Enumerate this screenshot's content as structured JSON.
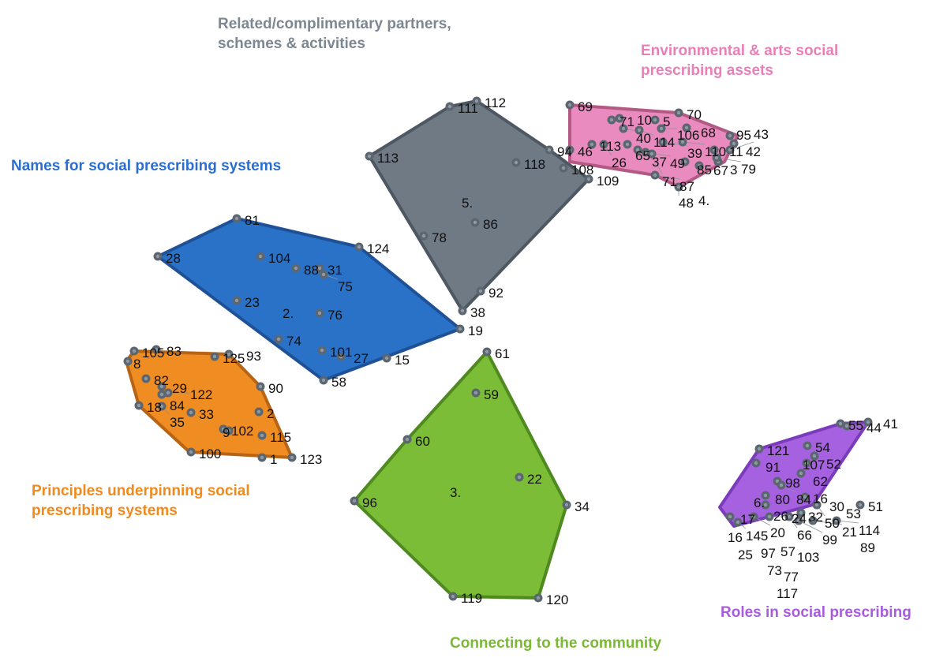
{
  "clusters": [
    {
      "id": "names",
      "title": "Names for social prescribing systems",
      "title_color": "#2a6fcf",
      "fill": "#2a72c8",
      "stroke": "#1f5196",
      "cluster_label": "2.",
      "points": [
        "81",
        "28",
        "104",
        "88",
        "31",
        "75",
        "124",
        "23",
        "76",
        "74",
        "101",
        "27",
        "15",
        "58",
        "19"
      ]
    },
    {
      "id": "related",
      "title": "Related/complimentary partners, schemes & activities",
      "title_color": "#7d8791",
      "fill": "#6f7a85",
      "stroke": "#4e5862",
      "cluster_label": "5.",
      "points": [
        "111",
        "112",
        "113",
        "118",
        "94",
        "108",
        "109",
        "86",
        "78",
        "92",
        "38"
      ]
    },
    {
      "id": "environmental",
      "title": "Environmental & arts social prescribing assets",
      "title_color": "#ea7fb8",
      "fill": "#e98bbf",
      "stroke": "#b35a84",
      "cluster_label": "4.",
      "points": [
        "69",
        "70",
        "71",
        "10",
        "5",
        "40",
        "114",
        "106",
        "68",
        "46",
        "113",
        "26",
        "65",
        "37",
        "49",
        "39",
        "110",
        "11",
        "71",
        "85",
        "67",
        "3",
        "95",
        "42",
        "79",
        "43",
        "87",
        "48"
      ]
    },
    {
      "id": "community",
      "title": "Connecting to the community",
      "title_color": "#7ab934",
      "fill": "#7cbd37",
      "stroke": "#4f8a20",
      "cluster_label": "3.",
      "points": [
        "61",
        "59",
        "60",
        "22",
        "34",
        "96",
        "119",
        "120"
      ]
    },
    {
      "id": "principles",
      "title": "Principles underpinning social prescribing systems",
      "title_color": "#f08a1c",
      "fill": "#ef8c22",
      "stroke": "#b86414",
      "cluster_label": "",
      "points": [
        "105",
        "83",
        "8",
        "125",
        "93",
        "82",
        "29",
        "84",
        "122",
        "90",
        "18",
        "35",
        "33",
        "2",
        "102",
        "9",
        "115",
        "100",
        "1",
        "123"
      ]
    },
    {
      "id": "roles",
      "title": "Roles in social prescribing",
      "title_color": "#a75ce0",
      "fill": "#a561e0",
      "stroke": "#7a3cbb",
      "cluster_label": "6.",
      "points": [
        "55",
        "44",
        "41",
        "121",
        "54",
        "52",
        "91",
        "107",
        "62",
        "98",
        "84",
        "80",
        "16",
        "17",
        "26",
        "30",
        "50",
        "51",
        "145",
        "20",
        "24",
        "66",
        "32",
        "99",
        "21",
        "114",
        "53",
        "16",
        "97",
        "25",
        "57",
        "103",
        "89",
        "73",
        "77",
        "117"
      ]
    }
  ]
}
